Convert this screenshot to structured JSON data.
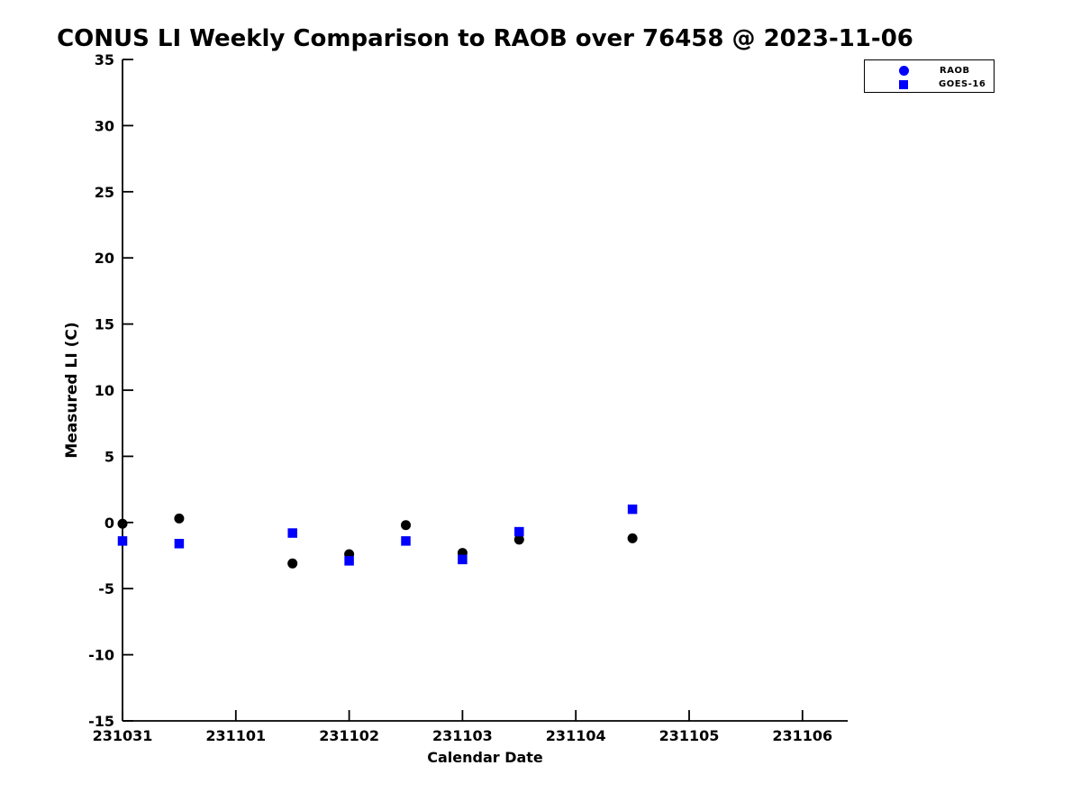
{
  "chart_data": {
    "type": "scatter",
    "title": "CONUS LI Weekly Comparison to RAOB over 76458 @ 2023-11-06",
    "xlabel": "Calendar Date",
    "ylabel": "Measured LI (C)",
    "ylim": [
      -15,
      35
    ],
    "ytick_step": 5,
    "ytick_labels": [
      "35",
      "30",
      "25",
      "20",
      "15",
      "10",
      "5",
      "0",
      "-5",
      "-10",
      "-15"
    ],
    "xtick_labels": [
      "231031",
      "231101",
      "231102",
      "231103",
      "231104",
      "231105",
      "231106"
    ],
    "xlim_days": [
      0,
      6.4
    ],
    "grid": false,
    "legend_position": "top-right",
    "x_values": [
      231031.0,
      231031.5,
      231101.5,
      231102.0,
      231102.5,
      231103.0,
      231103.5,
      231104.5
    ],
    "x_days": [
      0,
      0.5,
      1.5,
      2.0,
      2.5,
      3.0,
      3.5,
      4.5
    ],
    "series": [
      {
        "name": "RAOB",
        "marker": "circle",
        "point_color": "#000000",
        "legend_color": "#0000ff",
        "values": [
          -0.1,
          0.3,
          -3.1,
          -2.4,
          -0.2,
          -2.3,
          -1.3,
          -1.2
        ]
      },
      {
        "name": "GOES-16",
        "marker": "square",
        "point_color": "#0000ff",
        "legend_color": "#0000ff",
        "values": [
          -1.4,
          -1.6,
          -0.8,
          -2.9,
          -1.4,
          -2.8,
          -0.7,
          1.0
        ]
      }
    ],
    "axis_color": "#000000",
    "background_color": "#ffffff"
  }
}
